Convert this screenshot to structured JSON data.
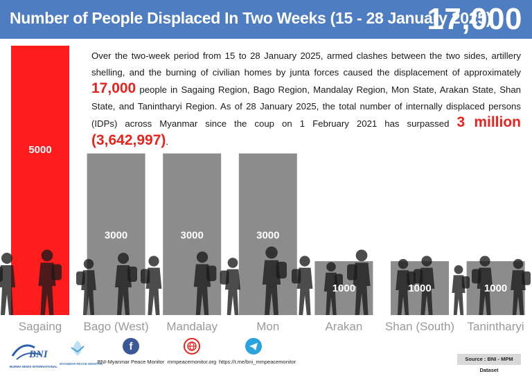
{
  "header": {
    "title": "Number of People Displaced In Two Weeks (15 - 28 January 2025)",
    "total": "17,000"
  },
  "summary": {
    "part1": "Over the two-week period from 15 to 28 January 2025, armed clashes between the two sides, artillery shelling, and the burning of civilian homes by junta forces caused the displacement of approximately",
    "highlight1": "17,000",
    "part2": "people in Sagaing Region, Bago Region, Mandalay Region, Mon State, Arakan State, Shan State, and Tanintharyi Region. As of 28 January 2025, the total number of internally displaced persons (IDPs) across Myanmar since the coup on 1 February 2021 has surpassed",
    "highlight2": "3 million (3,642,997)",
    "part3": "."
  },
  "chart_data": {
    "type": "bar",
    "title": "Number of People Displaced In Two Weeks (15 - 28 January 2025)",
    "categories": [
      "Sagaing",
      "Bago (West)",
      "Mandalay",
      "Mon",
      "Arakan",
      "Shan (South)",
      "Tanintharyi"
    ],
    "values": [
      5000,
      3000,
      3000,
      3000,
      1000,
      1000,
      1000
    ],
    "value_labels": [
      "5000",
      "3000",
      "3000",
      "3000",
      "1000",
      "1000",
      "1000"
    ],
    "xlabel": "",
    "ylabel": "",
    "ylim": [
      0,
      5000
    ],
    "colors": {
      "highlight": "#ff1c1c",
      "default": "#8c8c8c"
    }
  },
  "footer": {
    "bni_logo": "BNI",
    "bni_logo_caption": "BURMA NEWS INTERNATIONAL",
    "mpm_logo_caption": "MYANMAR PEACE MONITOR",
    "facebook_label": "BNI-Myanmar Peace Monitor",
    "website_label": "mmpeacemonitor.org",
    "telegram_label": "https://t.me/bni_mmpeacemonitor",
    "source": "Source : BNI - MPM Dataset"
  },
  "colors": {
    "header_bg": "#4f7dc1",
    "accent_red": "#e8231d"
  }
}
